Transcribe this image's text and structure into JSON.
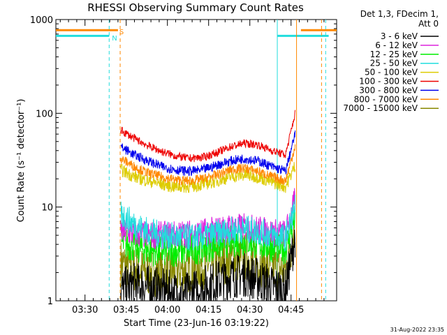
{
  "chart_data": {
    "type": "line",
    "title": "RHESSI Observing Summary Count Rates",
    "xlabel": "Start Time (23-Jun-16 03:19:22)",
    "ylabel": "Count Rate (s⁻¹ detector⁻¹)",
    "yscale": "log",
    "ylim": [
      1,
      1000
    ],
    "xlim_minutes": [
      199.4,
      301.6
    ],
    "x_ticks": [
      {
        "label": "03:30",
        "minute": 210
      },
      {
        "label": "03:45",
        "minute": 225
      },
      {
        "label": "04:00",
        "minute": 240
      },
      {
        "label": "04:15",
        "minute": 255
      },
      {
        "label": "04:30",
        "minute": 270
      },
      {
        "label": "04:45",
        "minute": 285
      }
    ],
    "y_ticks": [
      {
        "label": "1",
        "value": 1
      },
      {
        "label": "10",
        "value": 10
      },
      {
        "label": "100",
        "value": 100
      },
      {
        "label": "1000",
        "value": 1000
      }
    ],
    "legend_header": [
      "Det 1,3, FDecim 1,",
      "Att 0"
    ],
    "series": [
      {
        "name": "3 - 6 keV",
        "color": "#000000",
        "minute": [
          223,
          228,
          233,
          238,
          243,
          248,
          253,
          258,
          263,
          268,
          273,
          278,
          283,
          286.5
        ],
        "values": [
          1.3,
          1.5,
          1.4,
          1.3,
          1.2,
          1.2,
          1.4,
          1.6,
          1.8,
          1.9,
          1.7,
          1.4,
          1.3,
          5
        ]
      },
      {
        "name": "6 - 12 keV",
        "color": "#dd22dd",
        "minute": [
          223,
          228,
          233,
          238,
          243,
          248,
          253,
          258,
          263,
          268,
          273,
          278,
          283,
          286.5
        ],
        "values": [
          5.5,
          5.2,
          5.0,
          5.0,
          5.1,
          5.2,
          5.4,
          5.7,
          6.0,
          6.1,
          5.8,
          5.4,
          5.2,
          12
        ]
      },
      {
        "name": "12 - 25 keV",
        "color": "#00ee00",
        "minute": [
          223,
          228,
          233,
          238,
          243,
          248,
          253,
          258,
          263,
          268,
          273,
          278,
          283,
          286.5
        ],
        "values": [
          4.2,
          3.8,
          3.5,
          3.4,
          3.4,
          3.5,
          3.7,
          4.0,
          4.3,
          4.4,
          4.1,
          3.8,
          3.6,
          8
        ]
      },
      {
        "name": "25 - 50 keV",
        "color": "#22dddd",
        "minute": [
          223,
          228,
          233,
          238,
          243,
          248,
          253,
          258,
          263,
          268,
          273,
          278,
          283,
          286.5
        ],
        "values": [
          8.5,
          6.5,
          5.5,
          5.0,
          4.8,
          4.7,
          4.8,
          5.2,
          5.6,
          5.8,
          5.5,
          5.0,
          4.7,
          10
        ]
      },
      {
        "name": "50 - 100 keV",
        "color": "#ddcc00",
        "minute": [
          223,
          228,
          233,
          238,
          243,
          248,
          253,
          258,
          263,
          268,
          273,
          278,
          283,
          286.5
        ],
        "values": [
          25,
          21,
          19,
          17.5,
          16.5,
          16.5,
          17.5,
          19,
          21,
          22,
          21,
          18.5,
          16.5,
          28
        ]
      },
      {
        "name": "100 - 300 keV",
        "color": "#ee0000",
        "minute": [
          223,
          228,
          233,
          238,
          243,
          248,
          253,
          258,
          263,
          268,
          273,
          278,
          283,
          286.5
        ],
        "values": [
          66,
          54,
          45,
          39,
          35,
          33,
          34,
          38,
          44,
          48,
          46,
          40,
          36,
          100
        ]
      },
      {
        "name": "300 - 800 keV",
        "color": "#0000ee",
        "minute": [
          223,
          228,
          233,
          238,
          243,
          248,
          253,
          258,
          263,
          268,
          273,
          278,
          283,
          286.5
        ],
        "values": [
          44,
          36,
          31,
          27,
          25,
          24,
          25,
          28,
          31,
          33,
          31,
          27,
          24,
          60
        ]
      },
      {
        "name": "800 - 7000 keV",
        "color": "#ff8800",
        "minute": [
          223,
          228,
          233,
          238,
          243,
          248,
          253,
          258,
          263,
          268,
          273,
          278,
          283,
          286.5
        ],
        "values": [
          33,
          27,
          23,
          21,
          19.5,
          19,
          20,
          22,
          25,
          26,
          24,
          21,
          19,
          45
        ]
      },
      {
        "name": "7000 - 15000 keV",
        "color": "#888800",
        "minute": [
          223,
          228,
          233,
          238,
          243,
          248,
          253,
          258,
          263,
          268,
          273,
          278,
          283,
          286.5
        ],
        "values": [
          2.5,
          2.2,
          2.0,
          2.0,
          2.1,
          2.2,
          2.4,
          2.6,
          2.8,
          2.9,
          2.6,
          2.3,
          2.1,
          6
        ]
      }
    ],
    "annotations": [
      {
        "label": "S",
        "color": "#ff8800",
        "minute": 222.5,
        "value": 750
      },
      {
        "label": "N",
        "color": "#22dddd",
        "minute": 219.8,
        "value": 640
      }
    ],
    "flag_bars": [
      {
        "name": "saa-flag",
        "color": "#ff8800",
        "value": 770,
        "ranges": [
          [
            199.4,
            222.0
          ],
          [
            288.6,
            301.6
          ]
        ]
      },
      {
        "name": "night-flag",
        "color": "#22dddd",
        "value": 670,
        "ranges": [
          [
            199.4,
            218.8
          ],
          [
            280.0,
            298.7
          ]
        ]
      }
    ],
    "vertical_markers": [
      {
        "name": "night-start-dashed",
        "color": "#22dddd",
        "minute": 218.8,
        "dashed": true
      },
      {
        "name": "saa-start-dashed",
        "color": "#ff8800",
        "minute": 222.8,
        "dashed": true
      },
      {
        "name": "night-end-solid",
        "color": "#22dddd",
        "minute": 280.0,
        "dashed": false
      },
      {
        "name": "saa-end-solid",
        "color": "#ff8800",
        "minute": 287.0,
        "dashed": false
      },
      {
        "name": "saa-end-dashed",
        "color": "#ff8800",
        "minute": 296.1,
        "dashed": true
      },
      {
        "name": "night-end-dashed",
        "color": "#22dddd",
        "minute": 297.6,
        "dashed": true
      }
    ],
    "footer_date": "31-Aug-2022 23:35"
  }
}
